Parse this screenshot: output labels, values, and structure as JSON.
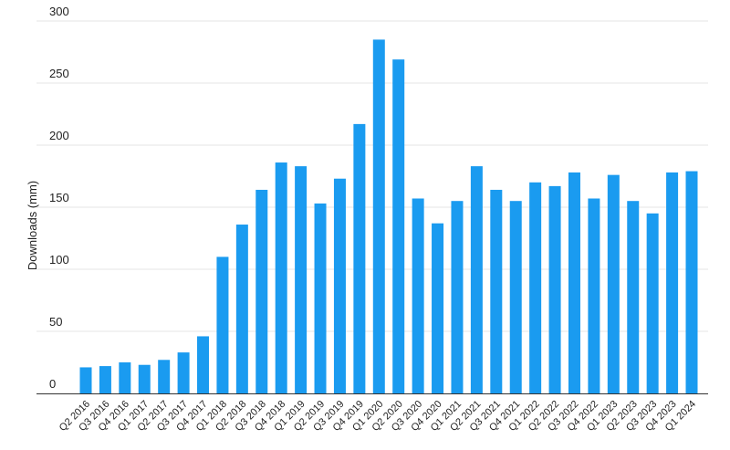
{
  "chart_data": {
    "type": "bar",
    "ylabel": "Downloads (mm)",
    "xlabel": "",
    "title": "",
    "ylim": [
      0,
      300
    ],
    "yticks": [
      0,
      50,
      100,
      150,
      200,
      250,
      300
    ],
    "grid": true,
    "bar_color": "#1a9bf0",
    "categories": [
      "Q2 2016",
      "Q3 2016",
      "Q4 2016",
      "Q1 2017",
      "Q2 2017",
      "Q3 2017",
      "Q4 2017",
      "Q1 2018",
      "Q2 2018",
      "Q3 2018",
      "Q4 2018",
      "Q1 2019",
      "Q2 2019",
      "Q3 2019",
      "Q4 2019",
      "Q1 2020",
      "Q2 2020",
      "Q3 2020",
      "Q4 2020",
      "Q1 2021",
      "Q2 2021",
      "Q3 2021",
      "Q4 2021",
      "Q1 2022",
      "Q2 2022",
      "Q3 2022",
      "Q4 2022",
      "Q1 2023",
      "Q2 2023",
      "Q3 2023",
      "Q4 2023",
      "Q1 2024"
    ],
    "values": [
      21,
      22,
      25,
      23,
      27,
      33,
      46,
      110,
      136,
      164,
      186,
      183,
      153,
      173,
      217,
      285,
      269,
      157,
      137,
      155,
      183,
      164,
      155,
      170,
      167,
      178,
      157,
      176,
      155,
      145,
      178,
      179
    ]
  }
}
